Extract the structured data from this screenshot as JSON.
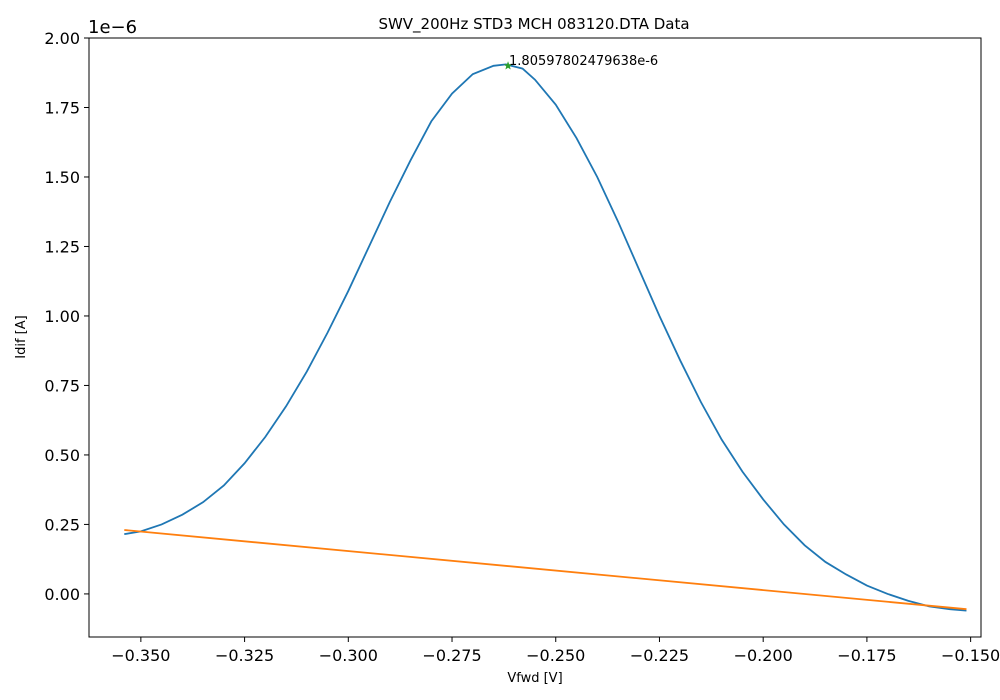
{
  "chart_data": {
    "type": "line",
    "title": "SWV_200Hz STD3 MCH 083120.DTA Data",
    "xlabel": "Vfwd [V]",
    "ylabel": "Idif [A]",
    "y_offset_label": "1e−6",
    "xlim": [
      -0.3625,
      -0.1475
    ],
    "ylim": [
      -0.155,
      2.0
    ],
    "x_ticks": [
      -0.35,
      -0.325,
      -0.3,
      -0.275,
      -0.25,
      -0.225,
      -0.2,
      -0.175,
      -0.15
    ],
    "x_tick_labels": [
      "−0.350",
      "−0.325",
      "−0.300",
      "−0.275",
      "−0.250",
      "−0.225",
      "−0.200",
      "−0.175",
      "−0.150"
    ],
    "y_ticks": [
      0.0,
      0.25,
      0.5,
      0.75,
      1.0,
      1.25,
      1.5,
      1.75,
      2.0
    ],
    "y_tick_labels": [
      "0.00",
      "0.25",
      "0.50",
      "0.75",
      "1.00",
      "1.25",
      "1.50",
      "1.75",
      "2.00"
    ],
    "grid": false,
    "series": [
      {
        "color": "#1f77b4",
        "x": [
          -0.354,
          -0.35,
          -0.345,
          -0.34,
          -0.335,
          -0.33,
          -0.325,
          -0.32,
          -0.315,
          -0.31,
          -0.305,
          -0.3,
          -0.295,
          -0.29,
          -0.285,
          -0.28,
          -0.275,
          -0.27,
          -0.265,
          -0.262,
          -0.258,
          -0.255,
          -0.25,
          -0.245,
          -0.24,
          -0.235,
          -0.23,
          -0.225,
          -0.22,
          -0.215,
          -0.21,
          -0.205,
          -0.2,
          -0.195,
          -0.19,
          -0.185,
          -0.18,
          -0.175,
          -0.17,
          -0.165,
          -0.16,
          -0.155,
          -0.151
        ],
        "y": [
          0.215,
          0.225,
          0.25,
          0.285,
          0.33,
          0.39,
          0.47,
          0.565,
          0.675,
          0.8,
          0.94,
          1.09,
          1.25,
          1.41,
          1.56,
          1.7,
          1.8,
          1.87,
          1.9,
          1.905,
          1.89,
          1.85,
          1.76,
          1.64,
          1.5,
          1.34,
          1.17,
          1.0,
          0.84,
          0.69,
          0.555,
          0.44,
          0.34,
          0.25,
          0.175,
          0.115,
          0.07,
          0.03,
          0.0,
          -0.025,
          -0.045,
          -0.055,
          -0.06
        ]
      },
      {
        "color": "#ff7f0e",
        "x": [
          -0.354,
          -0.151
        ],
        "y": [
          0.23,
          -0.055
        ]
      }
    ],
    "marker": {
      "x": -0.2615,
      "y": 1.9,
      "color": "#2ca02c",
      "label": "1.80597802479638e-6"
    }
  }
}
